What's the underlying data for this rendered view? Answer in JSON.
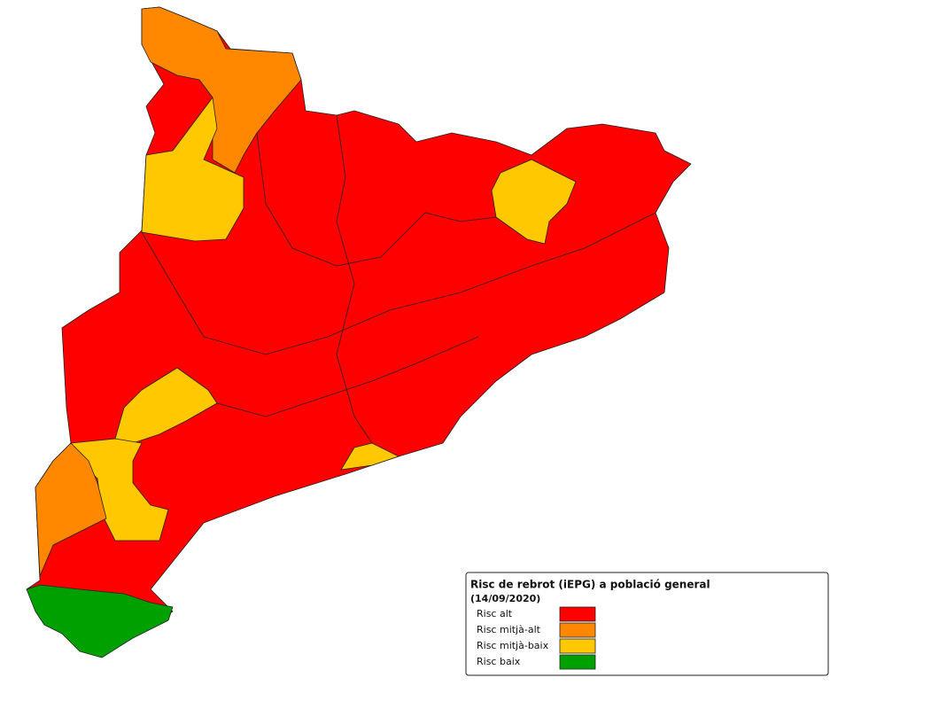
{
  "legend": {
    "title": "Risc de rebrot (iEPG) a població general",
    "date": "(14/09/2020)",
    "items": [
      {
        "label": "Risc alt",
        "color": "#ff0000"
      },
      {
        "label": "Risc mitjà-alt",
        "color": "#ff8800"
      },
      {
        "label": "Risc mitjà-baix",
        "color": "#ffc800"
      },
      {
        "label": "Risc baix",
        "color": "#00a000"
      }
    ]
  }
}
